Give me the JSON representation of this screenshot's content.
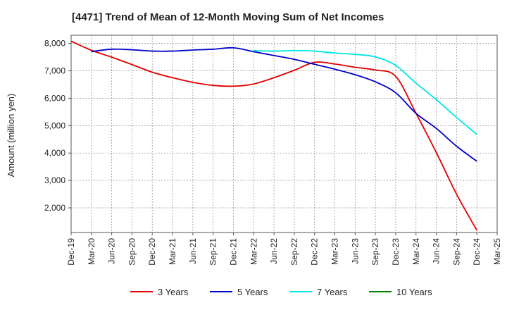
{
  "chart_data": {
    "type": "line",
    "title": "[4471]  Trend of Mean of 12-Month Moving Sum of Net Incomes",
    "ylabel": "Amount (million yen)",
    "xlabel": "",
    "x": [
      "Dec-19",
      "Mar-20",
      "Jun-20",
      "Sep-20",
      "Dec-20",
      "Mar-21",
      "Jun-21",
      "Sep-21",
      "Dec-21",
      "Mar-22",
      "Jun-22",
      "Sep-22",
      "Dec-22",
      "Mar-23",
      "Jun-23",
      "Sep-23",
      "Dec-23",
      "Mar-24",
      "Jun-24",
      "Sep-24",
      "Dec-24",
      "Mar-25"
    ],
    "ylim": [
      1100,
      8300
    ],
    "yticks": [
      2000,
      3000,
      4000,
      5000,
      6000,
      7000,
      8000
    ],
    "ytick_labels": [
      "2,000",
      "3,000",
      "4,000",
      "5,000",
      "6,000",
      "7,000",
      "8,000"
    ],
    "grid": true,
    "legend_position": "bottom",
    "series": [
      {
        "name": "3 Years",
        "color": "#e00000",
        "values": [
          8080,
          7750,
          7500,
          7230,
          6950,
          6750,
          6580,
          6470,
          6440,
          6520,
          6750,
          7020,
          7310,
          7250,
          7130,
          7030,
          6800,
          5450,
          4020,
          2500,
          1180,
          null
        ]
      },
      {
        "name": "5 Years",
        "color": "#0000c8",
        "values": [
          null,
          7700,
          7790,
          7770,
          7720,
          7720,
          7760,
          7790,
          7840,
          7700,
          7560,
          7420,
          7240,
          7060,
          6860,
          6600,
          6200,
          5450,
          4900,
          4250,
          3700,
          null
        ]
      },
      {
        "name": "7 Years",
        "color": "#00e6e6",
        "values": [
          null,
          null,
          null,
          null,
          null,
          null,
          null,
          null,
          null,
          7740,
          7720,
          7740,
          7720,
          7650,
          7600,
          7510,
          7200,
          6550,
          5950,
          5300,
          4680,
          null
        ]
      },
      {
        "name": "10 Years",
        "color": "#008000",
        "values": [
          null,
          null,
          null,
          null,
          null,
          null,
          null,
          null,
          null,
          null,
          null,
          null,
          null,
          null,
          null,
          null,
          null,
          null,
          null,
          null,
          null,
          null
        ]
      }
    ]
  }
}
